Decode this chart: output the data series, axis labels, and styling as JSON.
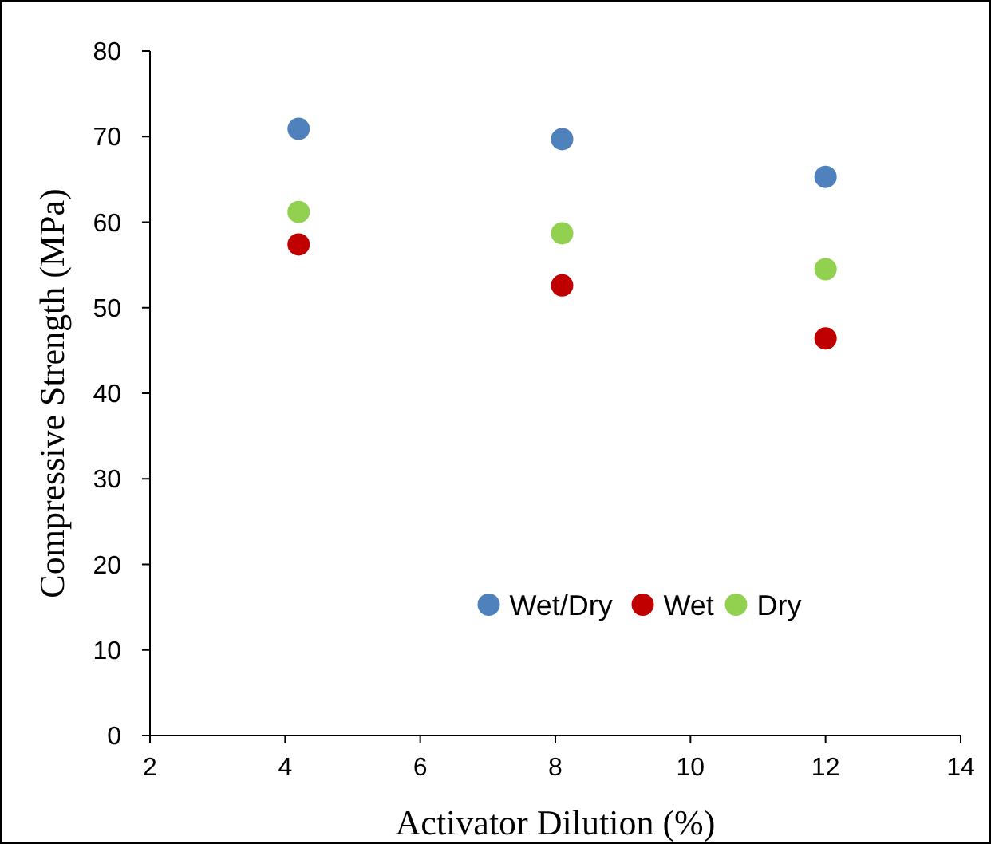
{
  "chart_data": {
    "type": "scatter",
    "xlabel": "Activator Dilution (%)",
    "ylabel": "Compressive Strength (MPa)",
    "x": [
      4.2,
      8.1,
      12
    ],
    "series": [
      {
        "name": "Wet/Dry",
        "color": "#4f81bd",
        "values": [
          70.9,
          69.7,
          65.3
        ]
      },
      {
        "name": "Wet",
        "color": "#c00000",
        "values": [
          57.4,
          52.6,
          46.4
        ]
      },
      {
        "name": "Dry",
        "color": "#92d050",
        "values": [
          61.2,
          58.7,
          54.5
        ]
      }
    ],
    "xlim": [
      2,
      14
    ],
    "xticks": [
      2,
      4,
      6,
      8,
      10,
      12,
      14
    ],
    "ylim": [
      0,
      80
    ],
    "yticks": [
      0,
      10,
      20,
      30,
      40,
      50,
      60,
      70,
      80
    ],
    "grid": false,
    "legend": "bottom",
    "marker": "circle"
  }
}
